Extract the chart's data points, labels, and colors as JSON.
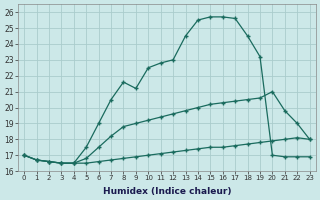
{
  "xlabel": "Humidex (Indice chaleur)",
  "bg_color": "#cce8e8",
  "line_color": "#1a6b5e",
  "grid_color": "#aacccc",
  "xlim": [
    -0.5,
    23.5
  ],
  "ylim": [
    16,
    26.5
  ],
  "xticks": [
    0,
    1,
    2,
    3,
    4,
    5,
    6,
    7,
    8,
    9,
    10,
    11,
    12,
    13,
    14,
    15,
    16,
    17,
    18,
    19,
    20,
    21,
    22,
    23
  ],
  "yticks": [
    16,
    17,
    18,
    19,
    20,
    21,
    22,
    23,
    24,
    25,
    26
  ],
  "line1_x": [
    0,
    1,
    2,
    3,
    4,
    5,
    6,
    7,
    8,
    9,
    10,
    11,
    12,
    13,
    14,
    15,
    16,
    17,
    18,
    19,
    20,
    21,
    22,
    23
  ],
  "line1_y": [
    17,
    16.7,
    16.6,
    16.5,
    16.5,
    16.5,
    16.6,
    16.7,
    16.8,
    16.9,
    17.0,
    17.1,
    17.2,
    17.3,
    17.4,
    17.5,
    17.5,
    17.6,
    17.7,
    17.8,
    17.9,
    18.0,
    18.1,
    18.0
  ],
  "line2_x": [
    0,
    1,
    2,
    3,
    4,
    5,
    6,
    7,
    8,
    9,
    10,
    11,
    12,
    13,
    14,
    15,
    16,
    17,
    18,
    19,
    20,
    21,
    22,
    23
  ],
  "line2_y": [
    17,
    16.7,
    16.6,
    16.5,
    16.5,
    16.8,
    17.5,
    18.2,
    18.8,
    19.0,
    19.2,
    19.4,
    19.6,
    19.8,
    20.0,
    20.2,
    20.3,
    20.4,
    20.5,
    20.6,
    21.0,
    19.8,
    19.0,
    18.0
  ],
  "line3_x": [
    0,
    1,
    2,
    3,
    4,
    5,
    6,
    7,
    8,
    9,
    10,
    11,
    12,
    13,
    14,
    15,
    16,
    17,
    18,
    19,
    20,
    21,
    22,
    23
  ],
  "line3_y": [
    17,
    16.7,
    16.6,
    16.5,
    16.5,
    17.5,
    19.0,
    20.5,
    21.6,
    21.2,
    22.5,
    22.8,
    23.0,
    24.5,
    25.5,
    25.7,
    25.7,
    25.6,
    24.5,
    23.2,
    17.0,
    16.9,
    16.9,
    16.9
  ]
}
